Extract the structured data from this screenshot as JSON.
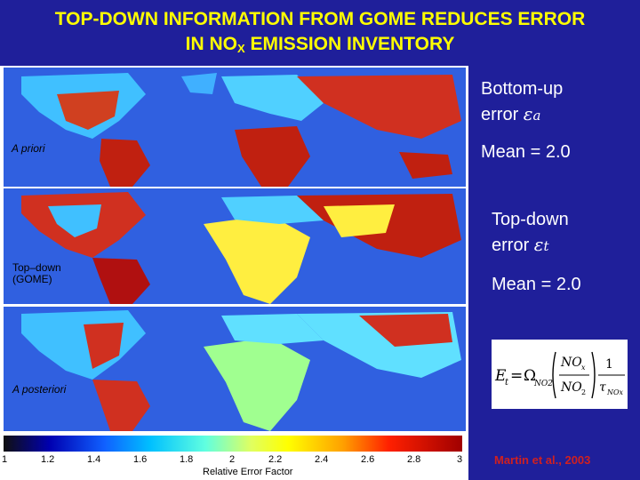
{
  "title": {
    "line1": "TOP-DOWN INFORMATION FROM GOME REDUCES ERROR",
    "line2_prefix": "IN NO",
    "line2_sub": "X",
    "line2_suffix": " EMISSION INVENTORY"
  },
  "panels": [
    {
      "label": "A priori"
    },
    {
      "label_line1": "Top–down",
      "label_line2": "(GOME)"
    },
    {
      "label": "A posteriori"
    }
  ],
  "side_text": {
    "bottom_up_line1": "Bottom-up",
    "bottom_up_line2_prefix": "error ",
    "bottom_up_symbol": "ε",
    "bottom_up_sub": "a",
    "mean1": "Mean = 2.0",
    "top_down_line1": "Top-down",
    "top_down_line2_prefix": "error ",
    "top_down_symbol": "ε",
    "top_down_sub": "t",
    "mean2": "Mean = 2.0"
  },
  "colorbar": {
    "ticks": [
      "1",
      "1.2",
      "1.4",
      "1.6",
      "1.8",
      "2",
      "2.2",
      "2.4",
      "2.6",
      "2.8",
      "3"
    ],
    "label": "Relative Error Factor"
  },
  "citation": "Martin et al., 2003",
  "colors": {
    "background": "#1f1f9a",
    "title": "#ffff00",
    "citation": "#d02020"
  }
}
